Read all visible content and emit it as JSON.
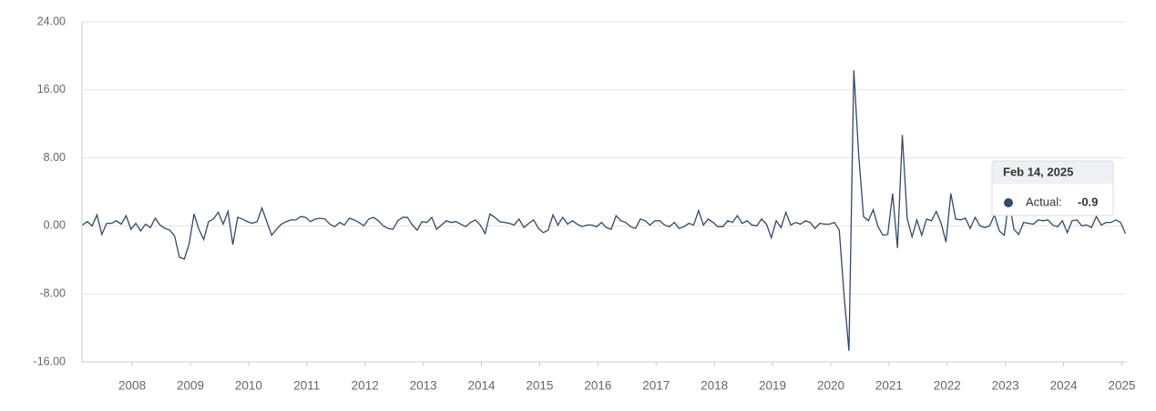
{
  "chart_data": {
    "type": "line",
    "color": "#34486b",
    "categories": [
      null,
      null,
      null,
      null,
      null,
      null,
      null,
      null,
      null,
      null,
      null,
      "2008",
      null,
      null,
      null,
      null,
      null,
      null,
      null,
      null,
      null,
      null,
      null,
      "2009",
      null,
      null,
      null,
      null,
      null,
      null,
      null,
      null,
      null,
      null,
      null,
      "2010",
      null,
      null,
      null,
      null,
      null,
      null,
      null,
      null,
      null,
      null,
      null,
      "2011",
      null,
      null,
      null,
      null,
      null,
      null,
      null,
      null,
      null,
      null,
      null,
      "2012",
      null,
      null,
      null,
      null,
      null,
      null,
      null,
      null,
      null,
      null,
      null,
      "2013",
      null,
      null,
      null,
      null,
      null,
      null,
      null,
      null,
      null,
      null,
      null,
      "2014",
      null,
      null,
      null,
      null,
      null,
      null,
      null,
      null,
      null,
      null,
      null,
      "2015",
      null,
      null,
      null,
      null,
      null,
      null,
      null,
      null,
      null,
      null,
      null,
      "2016",
      null,
      null,
      null,
      null,
      null,
      null,
      null,
      null,
      null,
      null,
      null,
      "2017",
      null,
      null,
      null,
      null,
      null,
      null,
      null,
      null,
      null,
      null,
      null,
      "2018",
      null,
      null,
      null,
      null,
      null,
      null,
      null,
      null,
      null,
      null,
      null,
      "2019",
      null,
      null,
      null,
      null,
      null,
      null,
      null,
      null,
      null,
      null,
      null,
      "2020",
      null,
      null,
      null,
      null,
      null,
      null,
      null,
      null,
      null,
      null,
      null,
      "2021",
      null,
      null,
      null,
      null,
      null,
      null,
      null,
      null,
      null,
      null,
      null,
      "2022",
      null,
      null,
      null,
      null,
      null,
      null,
      null,
      null,
      null,
      null,
      null,
      "2023",
      null,
      null,
      null,
      null,
      null,
      null,
      null,
      null,
      null,
      null,
      null,
      "2024",
      null,
      null,
      null,
      null,
      null,
      null,
      null,
      null,
      null,
      null,
      null,
      "2025"
    ],
    "values": [
      0.1,
      0.5,
      0,
      1.3,
      -1.0,
      0.3,
      0.3,
      0.6,
      0.2,
      1.2,
      -0.4,
      0.3,
      -0.6,
      0.2,
      -0.2,
      0.9,
      0.1,
      -0.3,
      -0.5,
      -1.2,
      -3.7,
      -3.9,
      -2.1,
      1.4,
      -0.4,
      -1.6,
      0.5,
      0.8,
      1.6,
      0.2,
      1.7,
      -2.2,
      1.0,
      0.8,
      0.5,
      0.3,
      0.5,
      2.1,
      0.5,
      -1.1,
      -0.4,
      0.2,
      0.5,
      0.7,
      0.7,
      1.1,
      1.0,
      0.5,
      0.8,
      0.9,
      0.8,
      0.2,
      -0.1,
      0.4,
      0.1,
      0.9,
      0.7,
      0.4,
      0,
      0.8,
      1.0,
      0.6,
      0,
      -0.3,
      -0.4,
      0.6,
      1.0,
      1.0,
      0.1,
      -0.5,
      0.5,
      0.4,
      1.0,
      -0.4,
      0.1,
      0.6,
      0.4,
      0.5,
      0.2,
      -0.1,
      0.4,
      0.7,
      0.1,
      -0.9,
      1.4,
      1.0,
      0.5,
      0.4,
      0.3,
      0.1,
      0.8,
      -0.2,
      0.3,
      0.7,
      -0.3,
      -0.8,
      -0.5,
      1.3,
      0.1,
      1.0,
      0.2,
      0.6,
      0.2,
      -0.1,
      0.1,
      0.1,
      -0.1,
      0.4,
      -0.2,
      -0.4,
      1.2,
      0.6,
      0.4,
      -0.1,
      -0.3,
      0.8,
      0.6,
      0.1,
      0.6,
      0.6,
      0.1,
      -0.1,
      0.4,
      -0.3,
      -0.1,
      0.3,
      0.1,
      1.8,
      0.1,
      0.8,
      0.4,
      -0.1,
      -0.1,
      0.6,
      0.4,
      1.2,
      0.3,
      0.6,
      0.1,
      0,
      0.8,
      0.2,
      -1.4,
      0.6,
      -0.2,
      1.6,
      0.1,
      0.4,
      0.2,
      0.6,
      0.4,
      -0.3,
      0.3,
      0.2,
      0.2,
      0.4,
      -0.5,
      -8.2,
      -14.7,
      18.3,
      8.4,
      1.1,
      0.6,
      1.9,
      -0.1,
      -1.1,
      -1.0,
      3.8,
      -2.6,
      10.7,
      0.9,
      -1.3,
      0.7,
      -1.1,
      0.8,
      0.6,
      1.7,
      0.3,
      -1.9,
      3.8,
      0.8,
      0.7,
      0.9,
      -0.3,
      1.0,
      0,
      -0.2,
      0,
      1.3,
      -0.6,
      -1.1,
      3.0,
      -0.4,
      -1.0,
      0.4,
      0.3,
      0.2,
      0.7,
      0.6,
      0.7,
      0.1,
      -0.1,
      0.6,
      -0.8,
      0.6,
      0.7,
      0,
      0.1,
      -0.2,
      1.1,
      0.1,
      0.4,
      0.4,
      0.7,
      0.4,
      -0.9
    ],
    "ylim": [
      -16,
      24
    ],
    "yticks": [
      {
        "value": -16,
        "label": "-16.00"
      },
      {
        "value": -8,
        "label": "-8.00"
      },
      {
        "value": 0,
        "label": "0.00"
      },
      {
        "value": 8,
        "label": "8.00"
      },
      {
        "value": 16,
        "label": "16.00"
      },
      {
        "value": 24,
        "label": "24.00"
      }
    ],
    "grid": true,
    "tooltip": {
      "date": "Feb 14, 2025",
      "label": "Actual:",
      "value": -0.9
    }
  }
}
